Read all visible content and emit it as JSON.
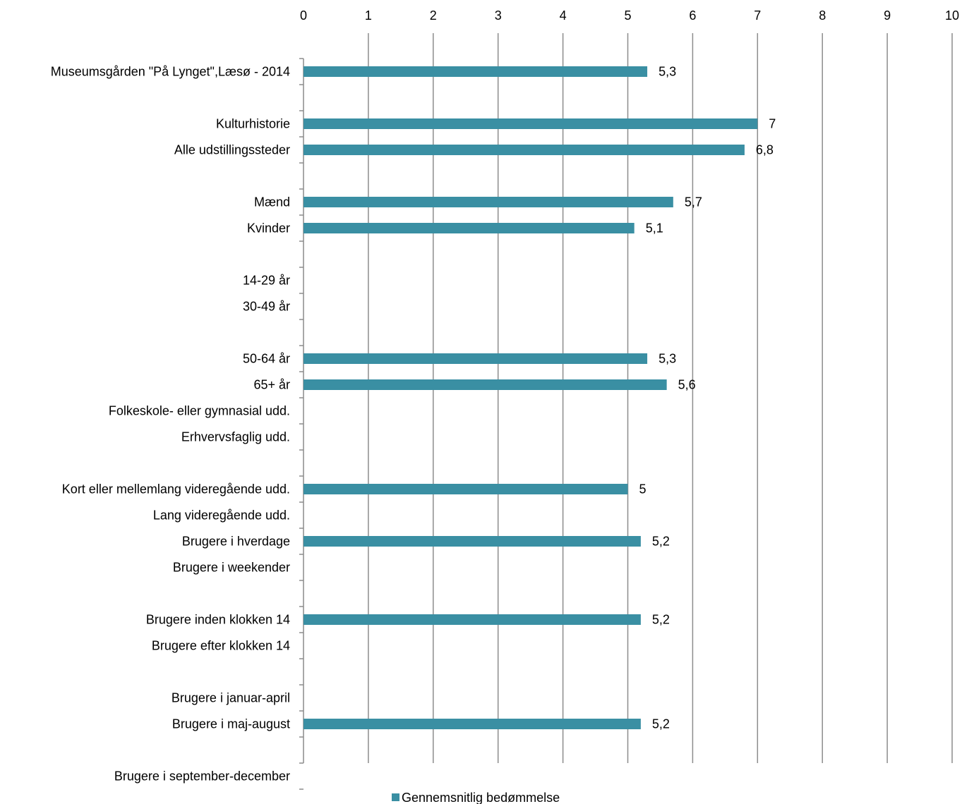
{
  "chart_data": {
    "type": "bar",
    "orientation": "horizontal",
    "title": "",
    "xlabel": "",
    "ylabel": "",
    "xlim": [
      0,
      10
    ],
    "x_ticks": [
      "0",
      "1",
      "2",
      "3",
      "4",
      "5",
      "6",
      "7",
      "8",
      "9",
      "10"
    ],
    "x_axis_position": "top",
    "grid": "vertical",
    "legend_position": "bottom-center",
    "bar_color": "#3a8fa3",
    "gridline_color": "#8c8c8c",
    "categories": [
      "Museumsgården \"På Lynget\",Læsø - 2014",
      "Kulturhistorie",
      "Alle udstillingssteder",
      "Mænd",
      "Kvinder",
      "14-29 år",
      "30-49 år",
      "50-64 år",
      "65+ år",
      "Folkeskole- eller gymnasial udd.",
      "Erhvervsfaglig udd.",
      "Kort eller mellemlang videregående udd.",
      "Lang videregående udd.",
      "Brugere i hverdage",
      "Brugere i weekender",
      "Brugere inden klokken 14",
      "Brugere efter klokken 14",
      "Brugere i januar-april",
      "Brugere i maj-august",
      "Brugere i september-december"
    ],
    "groups": [
      1,
      2,
      2,
      2,
      4,
      4,
      2,
      2,
      3
    ],
    "series": [
      {
        "name": "Gennemsnitlig bedømmelse",
        "values": [
          5.3,
          7,
          6.8,
          5.7,
          5.1,
          null,
          null,
          5.3,
          5.6,
          null,
          null,
          5,
          null,
          5.2,
          null,
          5.2,
          null,
          null,
          5.2,
          null
        ],
        "labels": [
          "5,3",
          "7",
          "6,8",
          "5,7",
          "5,1",
          "",
          "",
          "5,3",
          "5,6",
          "",
          "",
          "5",
          "",
          "5,2",
          "",
          "5,2",
          "",
          "",
          "5,2",
          ""
        ]
      }
    ]
  }
}
